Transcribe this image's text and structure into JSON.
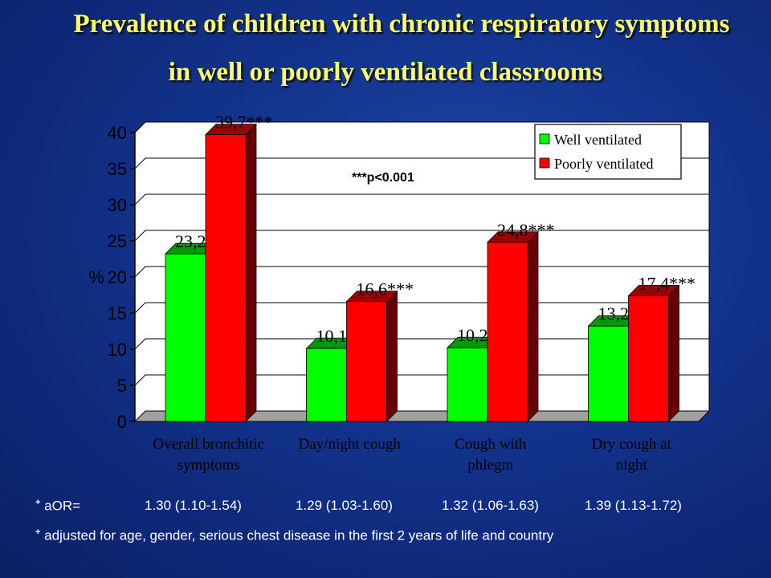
{
  "title_line1": "Prevalence of children with chronic respiratory symptoms",
  "title_line2": "in well or poorly ventilated classrooms",
  "note": "***p<0.001",
  "aor": {
    "label": "aOR=",
    "values": [
      "1.30 (1.10-1.54)",
      "1.29 (1.03-1.60)",
      "1.32 (1.06-1.63)",
      "1.39 (1.13-1.72)"
    ]
  },
  "footnote": "adjusted for age, gender, serious chest disease in the first 2 years of life and country",
  "colors": {
    "well": "#00ff00",
    "poor": "#ff0000",
    "title": "#ffff66"
  },
  "chart_data": {
    "type": "bar",
    "ylabel": "%",
    "ylim": [
      0,
      40
    ],
    "yticks": [
      0,
      5,
      10,
      15,
      20,
      25,
      30,
      35,
      40
    ],
    "categories": [
      [
        "Overall bronchitic",
        "symptoms"
      ],
      [
        "Day/night cough"
      ],
      [
        "Cough with",
        "phlegm"
      ],
      [
        "Dry cough at",
        "night"
      ]
    ],
    "legend_position": "top-right",
    "series": [
      {
        "name": "Well ventilated",
        "values": [
          23.2,
          10.1,
          10.2,
          13.2
        ],
        "labels": [
          "23,2",
          "10,1",
          "10,2",
          "13,2"
        ]
      },
      {
        "name": "Poorly ventilated",
        "values": [
          39.7,
          16.6,
          24.8,
          17.4
        ],
        "labels": [
          "39,7***",
          "16,6***",
          "24,8***",
          "17,4***"
        ]
      }
    ]
  }
}
